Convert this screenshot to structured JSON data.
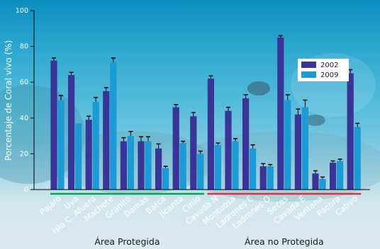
{
  "chart_data": {
    "type": "bar",
    "ylabel": "Porcentaje de Coral vivo (%)",
    "ylim": [
      0,
      100
    ],
    "yticks": [
      "0",
      "20",
      "40",
      "60",
      "80",
      "100"
    ],
    "categories": [
      "Pajaro",
      "Uva",
      "Isla C. Afuera",
      "Machete",
      "Granito",
      "Damas",
      "Barca",
      "Jicarita",
      "Cirilo",
      "Cavada N",
      "Montuosa",
      "Ladrones E",
      "Ladrones O",
      "Secas",
      "Cavada E",
      "Ventana",
      "Pacora",
      "Cativo"
    ],
    "series": [
      {
        "name": "2002",
        "color": "#3a3398",
        "values": [
          72,
          64,
          39,
          55,
          27,
          27,
          23,
          46,
          41,
          62,
          44,
          51,
          13,
          85,
          42,
          9,
          15,
          65
        ],
        "errors": [
          1.5,
          1.5,
          2,
          2,
          2,
          2.5,
          2.5,
          1.5,
          2,
          1.5,
          2,
          2,
          1.5,
          1,
          3,
          1.5,
          1,
          2
        ]
      },
      {
        "name": "2009",
        "color": "#1a9bd6",
        "values": [
          50,
          37,
          49,
          71,
          30,
          27,
          12,
          26,
          20,
          25,
          27,
          23,
          13,
          50,
          46,
          6,
          16,
          35
        ],
        "errors": [
          2.5,
          0,
          2.5,
          2.5,
          2.5,
          2.5,
          1,
          1,
          1.5,
          1,
          1.5,
          2,
          1,
          3,
          4,
          1,
          1,
          2
        ]
      }
    ],
    "groups": [
      {
        "label": "Área Protegida",
        "color": "#00a651",
        "from": 0,
        "to": 8
      },
      {
        "label": "Área no Protegida",
        "color": "#e0303a",
        "from": 9,
        "to": 17
      }
    ],
    "legend_position": "right",
    "grid": false
  }
}
